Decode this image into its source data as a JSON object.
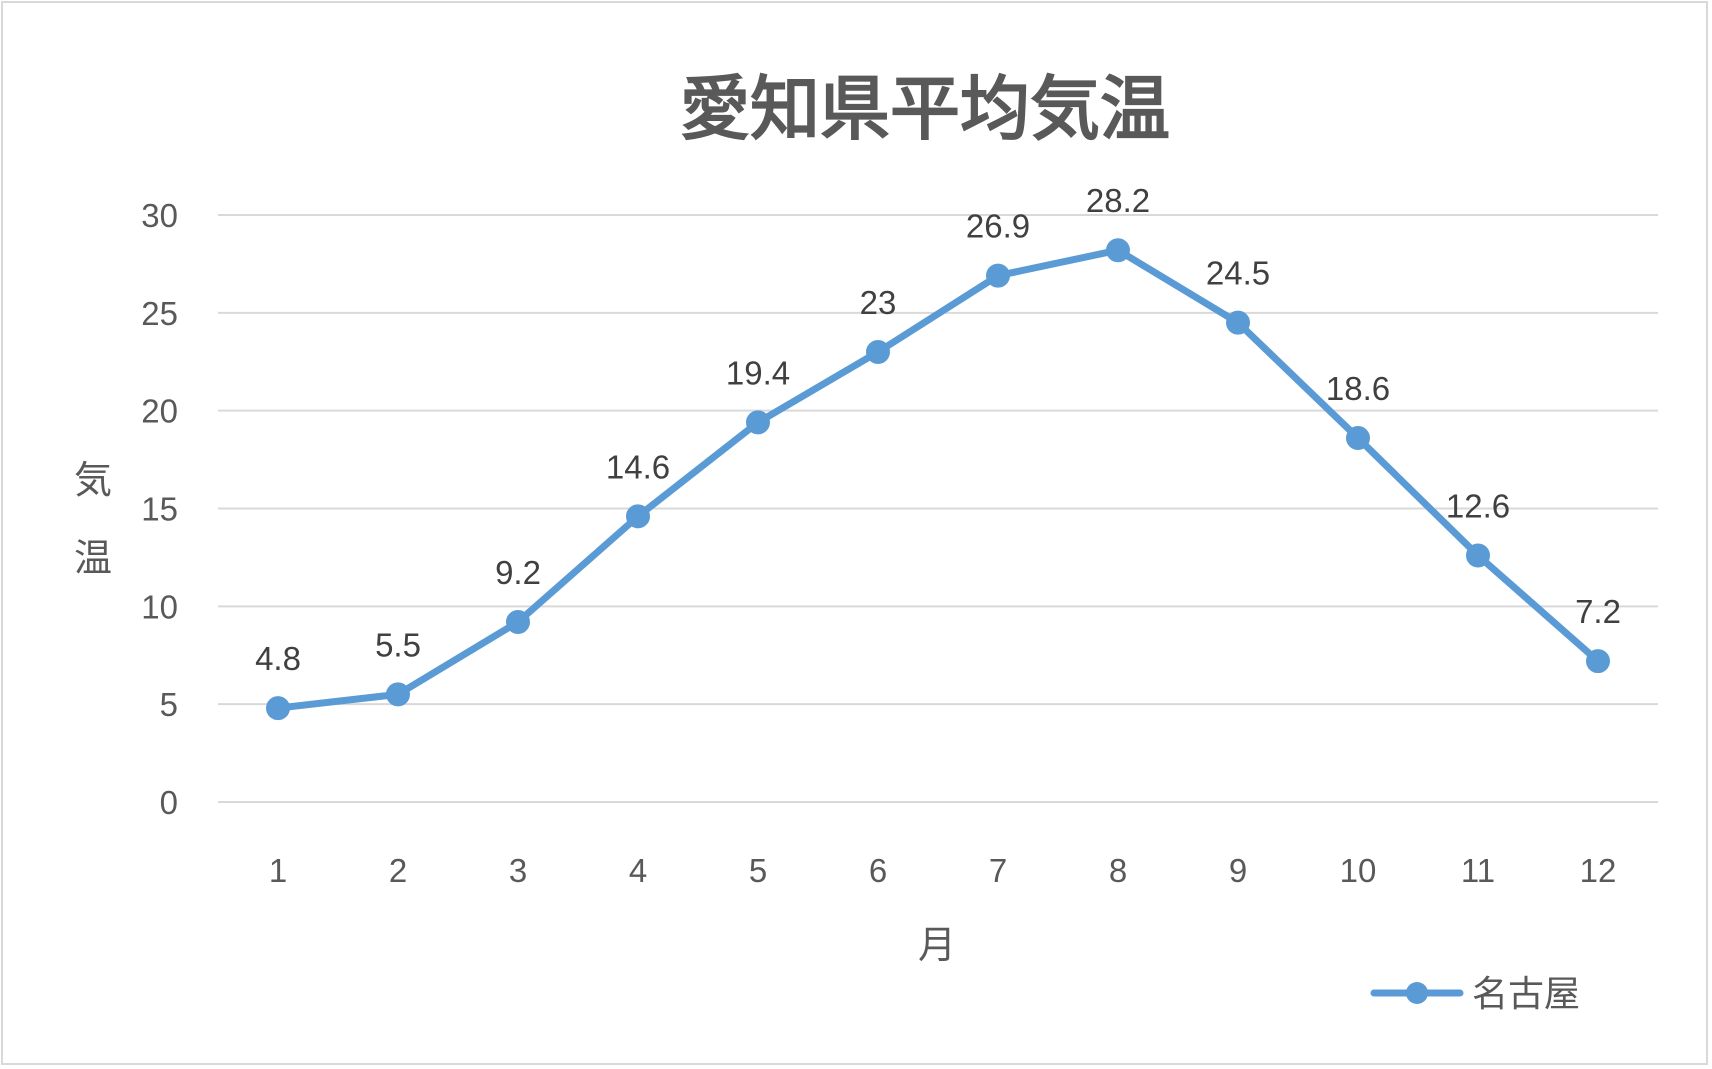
{
  "chart_data": {
    "type": "line",
    "title": "愛知県平均気温",
    "xlabel": "月",
    "ylabel": "気温",
    "categories": [
      "1",
      "2",
      "3",
      "4",
      "5",
      "6",
      "7",
      "8",
      "9",
      "10",
      "11",
      "12"
    ],
    "series": [
      {
        "name": "名古屋",
        "values": [
          4.8,
          5.5,
          9.2,
          14.6,
          19.4,
          23,
          26.9,
          28.2,
          24.5,
          18.6,
          12.6,
          7.2
        ]
      }
    ],
    "yticks": [
      "0",
      "5",
      "10",
      "15",
      "20",
      "25",
      "30"
    ],
    "ylim": [
      0,
      30
    ],
    "grid": true,
    "legend": "bottom-right",
    "colors": {
      "series": "#5b9bd5",
      "grid": "#d9d9d9",
      "text": "#595959"
    }
  }
}
